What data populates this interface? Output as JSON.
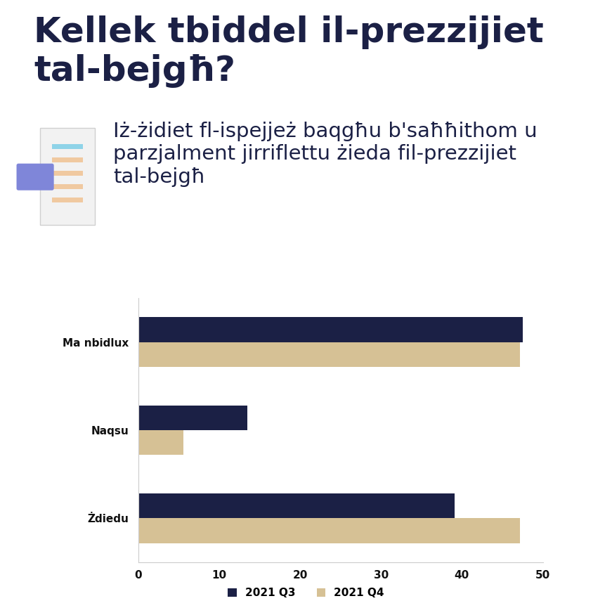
{
  "chart_data": {
    "type": "bar",
    "orientation": "horizontal",
    "title": "Kellek tbiddel il-prezzijiet tal-bejgħ?",
    "subtitle": "Iż-żidiet fl-ispejjeż baqgħu b'saħħithom u parzjalment jirriflettu żieda fil-prezzijiet tal-bejgħ",
    "categories": [
      "Ma nbidlux",
      "Naqsu",
      "Żdiedu"
    ],
    "series": [
      {
        "name": "2021 Q3",
        "color": "#1b2045",
        "values": [
          47.5,
          13.5,
          39.1
        ]
      },
      {
        "name": "2021 Q4",
        "color": "#d6c195",
        "values": [
          47.2,
          5.6,
          47.2
        ]
      }
    ],
    "xlim": [
      0,
      50
    ],
    "xticks": [
      0,
      10,
      20,
      30,
      40,
      50
    ],
    "grid": false,
    "legend": "lower center"
  }
}
